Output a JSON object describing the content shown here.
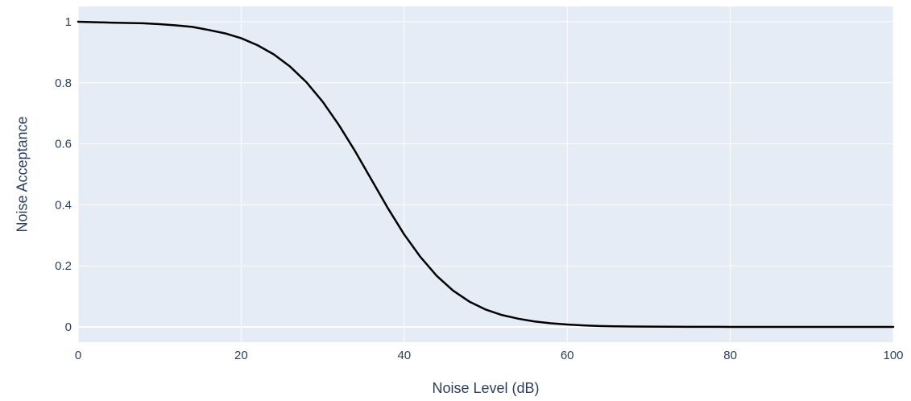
{
  "chart_data": {
    "type": "line",
    "title": "",
    "xlabel": "Noise Level (dB)",
    "ylabel": "Noise Acceptance",
    "xlim": [
      0,
      100
    ],
    "ylim": [
      -0.05,
      1.05
    ],
    "x_ticks": [
      0,
      20,
      40,
      60,
      80,
      100
    ],
    "y_ticks": [
      0,
      0.2,
      0.4,
      0.6,
      0.8,
      1
    ],
    "x_tick_labels": [
      "0",
      "20",
      "40",
      "60",
      "80",
      "100"
    ],
    "y_tick_labels": [
      "0",
      "0.2",
      "0.4",
      "0.6",
      "0.8",
      "1"
    ],
    "grid": true,
    "legend": "none",
    "series": [
      {
        "color": "#000000",
        "x": [
          0,
          4,
          8,
          10,
          12,
          14,
          16,
          18,
          20,
          22,
          24,
          26,
          28,
          30,
          32,
          34,
          36,
          38,
          40,
          42,
          44,
          46,
          48,
          50,
          52,
          54,
          56,
          58,
          60,
          62,
          64,
          66,
          68,
          70,
          75,
          80,
          85,
          90,
          95,
          100
        ],
        "y": [
          1.0,
          0.997,
          0.995,
          0.992,
          0.988,
          0.983,
          0.973,
          0.962,
          0.946,
          0.923,
          0.893,
          0.853,
          0.802,
          0.738,
          0.661,
          0.575,
          0.482,
          0.389,
          0.303,
          0.229,
          0.167,
          0.119,
          0.083,
          0.057,
          0.039,
          0.027,
          0.018,
          0.012,
          0.008,
          0.005,
          0.003,
          0.002,
          0.0015,
          0.001,
          0.0005,
          0.0002,
          0.0001,
          0.0,
          0.0,
          0.0
        ]
      }
    ]
  },
  "colors": {
    "plot_background": "#e5ecf6",
    "grid": "#ffffff",
    "text": "#2a3f5f",
    "line": "#000000"
  }
}
